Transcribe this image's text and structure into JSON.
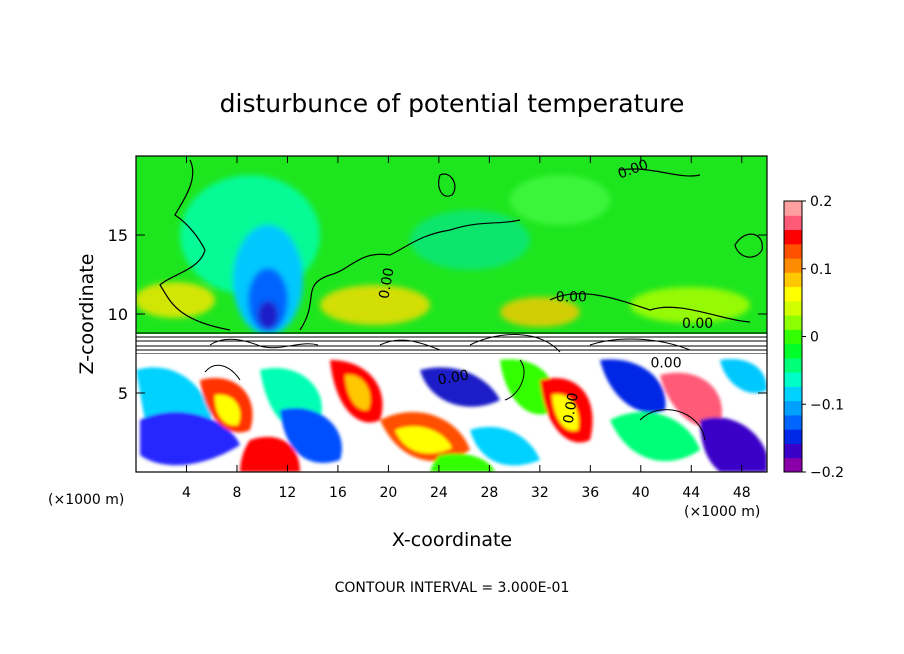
{
  "chart_data": {
    "type": "heatmap",
    "title": "disturbunce of potential temperature",
    "xlabel": "X-coordinate",
    "ylabel": "Z-coordinate",
    "x_unit_label": "(×1000 m)",
    "x_unit_label_right": "(×1000 m)",
    "xlim": [
      0,
      50
    ],
    "ylim": [
      0,
      20
    ],
    "x_ticks": [
      4,
      8,
      12,
      16,
      20,
      24,
      28,
      32,
      36,
      40,
      44,
      48
    ],
    "y_ticks": [
      5,
      10,
      15
    ],
    "colorbar": {
      "min": -0.2,
      "max": 0.2,
      "tick_values": [
        0.2,
        0.1,
        0,
        -0.1,
        -0.2
      ],
      "tick_labels": [
        "0.2",
        "0.1",
        "0",
        "−0.1",
        "−0.2"
      ],
      "colors": [
        "#8a00a8",
        "#3a00c8",
        "#0028e6",
        "#0064ff",
        "#00a0ff",
        "#00d2ff",
        "#00ffc8",
        "#00ff78",
        "#00ff28",
        "#32ff00",
        "#8cff00",
        "#d2ff00",
        "#ffff00",
        "#ffc800",
        "#ff8c00",
        "#ff5000",
        "#ff0000",
        "#ff5a78",
        "#ffa0a0"
      ]
    },
    "contour_labels": [
      "0.00",
      "0.00",
      "0.00",
      "0.00",
      "0.00",
      "0.00",
      "0.00"
    ],
    "footer": "CONTOUR INTERVAL = 3.000E-01"
  }
}
